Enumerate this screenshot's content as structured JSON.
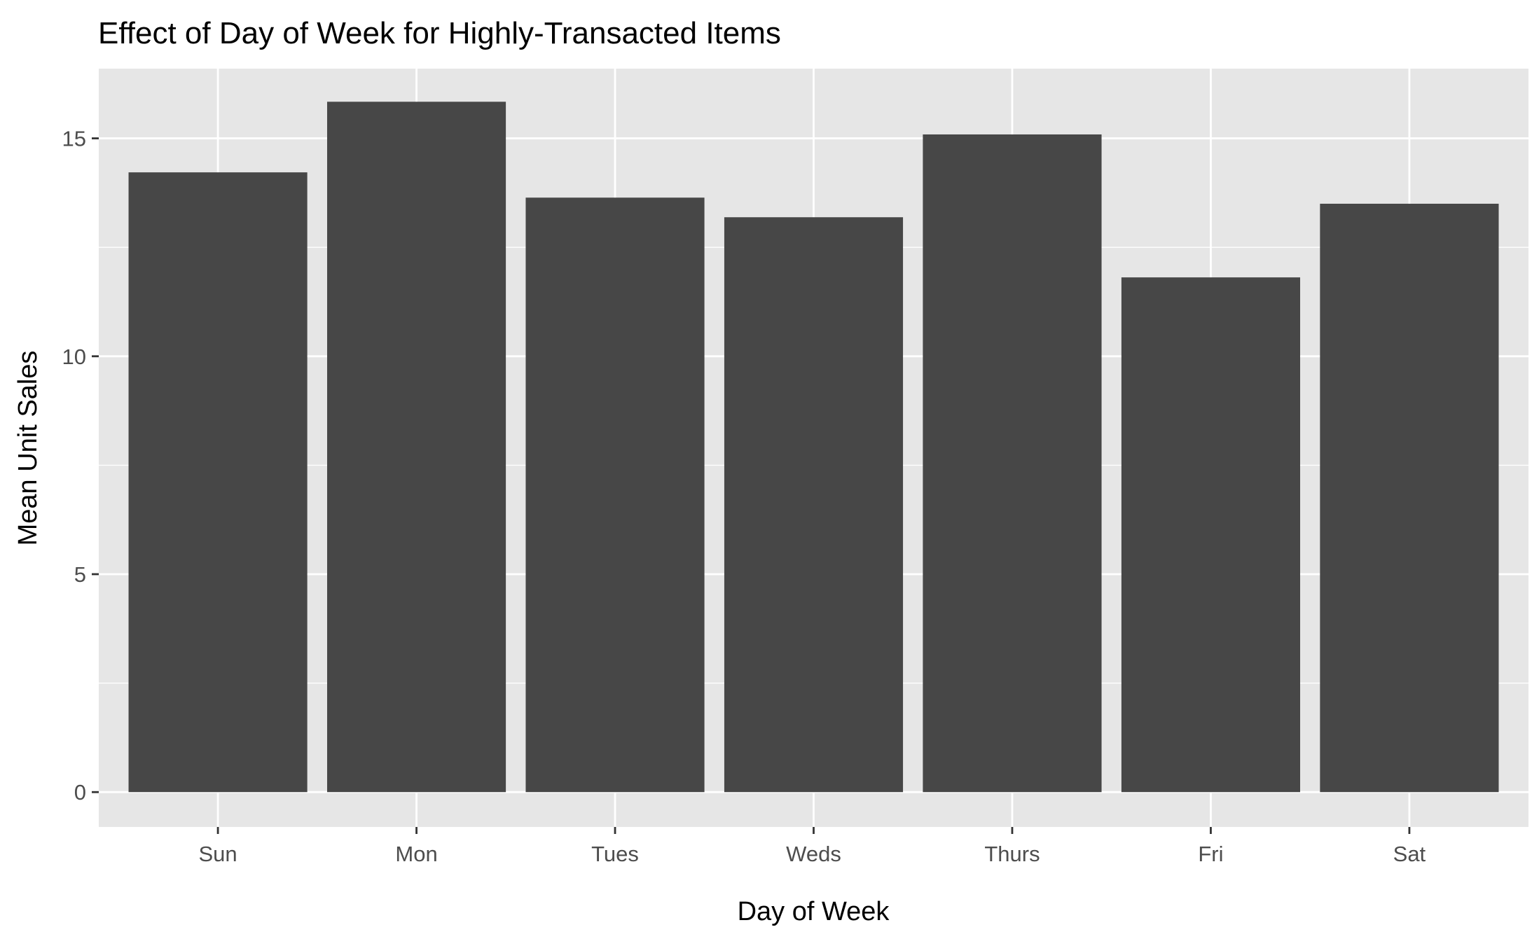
{
  "chart_data": {
    "type": "bar",
    "title": "Effect of Day of Week for Highly-Transacted Items",
    "xlabel": "Day of Week",
    "ylabel": "Mean Unit Sales",
    "categories": [
      "Sun",
      "Mon",
      "Tues",
      "Weds",
      "Thurs",
      "Fri",
      "Sat"
    ],
    "values": [
      14.22,
      15.84,
      13.64,
      13.19,
      15.09,
      11.81,
      13.5
    ],
    "ylim": [
      -0.8,
      16.6
    ],
    "yticks": [
      0,
      5,
      10,
      15
    ],
    "ytick_labels": [
      "0",
      "5",
      "10",
      "15"
    ],
    "grid": true,
    "legend": "none",
    "colors": {
      "bar": "#474747",
      "panel": "#e6e6e6",
      "grid": "#ffffff",
      "tick": "#333333",
      "tick_label": "#4d4d4d"
    }
  }
}
